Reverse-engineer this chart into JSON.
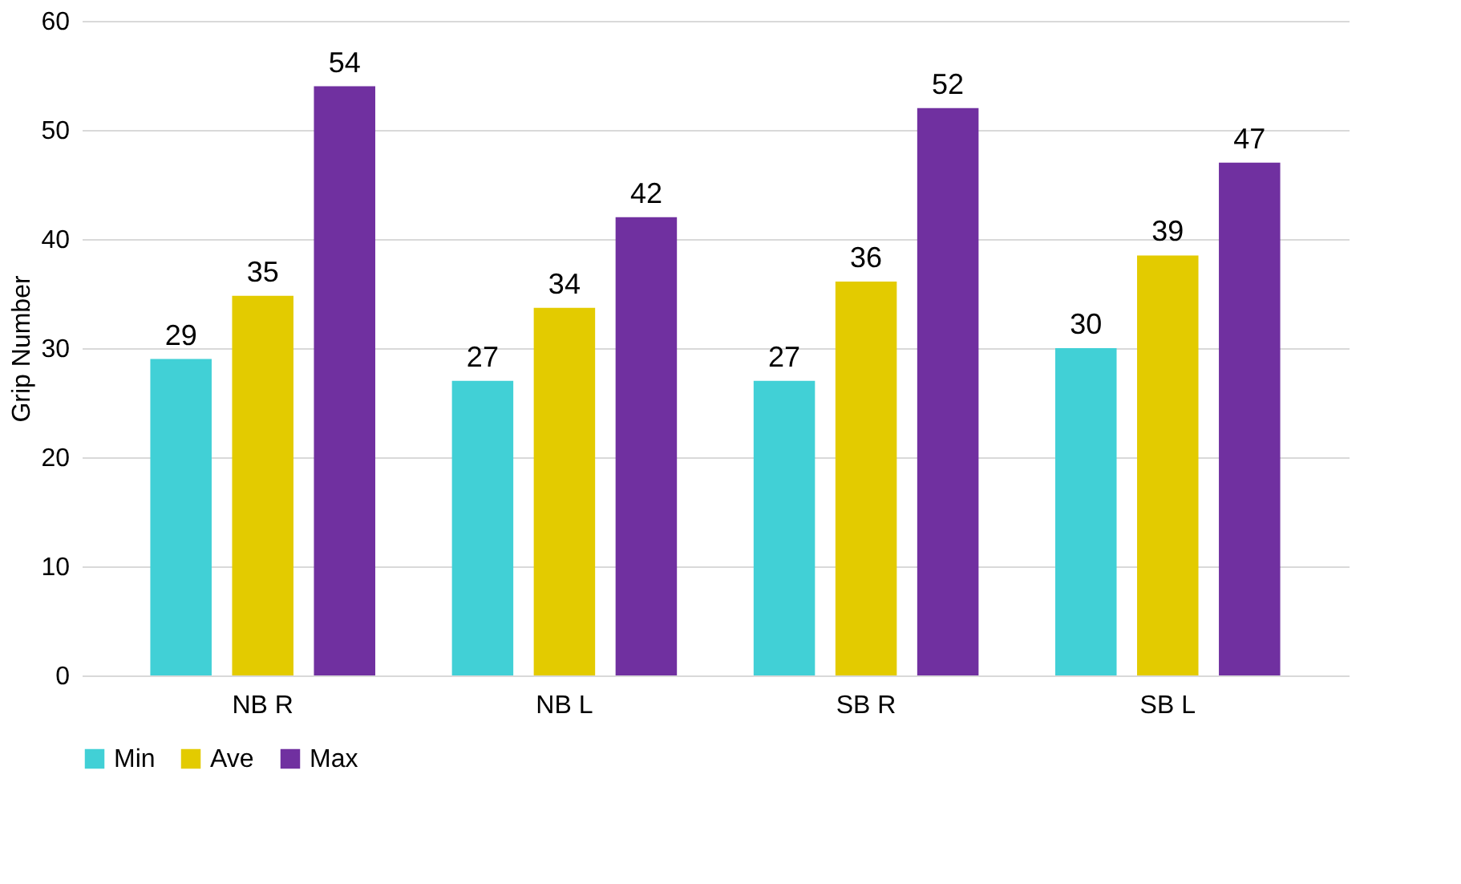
{
  "chart_data": {
    "type": "bar",
    "ylabel": "Grip Number",
    "categories": [
      "NB R",
      "NB L",
      "SB R",
      "SB L"
    ],
    "series": [
      {
        "name": "Min",
        "color": "#41d0d6",
        "values": [
          29,
          27,
          27,
          30
        ],
        "value_labels": [
          "29",
          "27",
          "27",
          "30"
        ]
      },
      {
        "name": "Ave",
        "color": "#e3cb00",
        "values": [
          34.8,
          33.7,
          36.1,
          38.5
        ],
        "value_labels": [
          "35",
          "34",
          "36",
          "39"
        ]
      },
      {
        "name": "Max",
        "color": "#7030a0",
        "values": [
          54,
          42,
          52,
          47
        ],
        "value_labels": [
          "54",
          "42",
          "52",
          "47"
        ]
      }
    ],
    "ylim": [
      0,
      60
    ],
    "yticks": [
      0,
      10,
      20,
      30,
      40,
      50,
      60
    ],
    "grid": "y",
    "legend": "bottom"
  }
}
